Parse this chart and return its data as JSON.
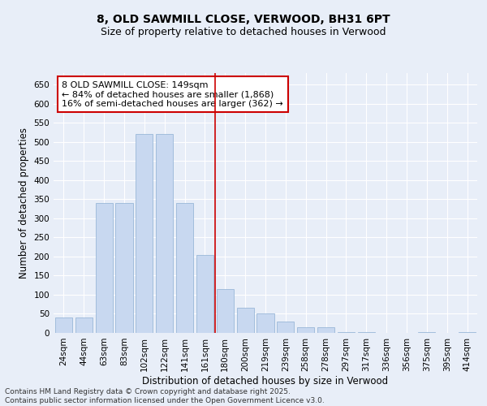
{
  "title": "8, OLD SAWMILL CLOSE, VERWOOD, BH31 6PT",
  "subtitle": "Size of property relative to detached houses in Verwood",
  "xlabel": "Distribution of detached houses by size in Verwood",
  "ylabel": "Number of detached properties",
  "categories": [
    "24sqm",
    "44sqm",
    "63sqm",
    "83sqm",
    "102sqm",
    "122sqm",
    "141sqm",
    "161sqm",
    "180sqm",
    "200sqm",
    "219sqm",
    "239sqm",
    "258sqm",
    "278sqm",
    "297sqm",
    "317sqm",
    "336sqm",
    "356sqm",
    "375sqm",
    "395sqm",
    "414sqm"
  ],
  "values": [
    40,
    40,
    340,
    340,
    520,
    520,
    340,
    205,
    115,
    65,
    50,
    30,
    15,
    15,
    2,
    2,
    0,
    0,
    2,
    0,
    2
  ],
  "bar_color": "#c8d8f0",
  "bar_edge_color": "#9ab8d8",
  "vline_color": "#cc0000",
  "vline_x": 7.5,
  "annotation_text": "8 OLD SAWMILL CLOSE: 149sqm\n← 84% of detached houses are smaller (1,868)\n16% of semi-detached houses are larger (362) →",
  "annotation_box_facecolor": "#ffffff",
  "annotation_box_edgecolor": "#cc0000",
  "ylim": [
    0,
    680
  ],
  "yticks": [
    0,
    50,
    100,
    150,
    200,
    250,
    300,
    350,
    400,
    450,
    500,
    550,
    600,
    650
  ],
  "background_color": "#e8eef8",
  "grid_color": "#ffffff",
  "footer_text": "Contains HM Land Registry data © Crown copyright and database right 2025.\nContains public sector information licensed under the Open Government Licence v3.0.",
  "title_fontsize": 10,
  "subtitle_fontsize": 9,
  "xlabel_fontsize": 8.5,
  "ylabel_fontsize": 8.5,
  "tick_fontsize": 7.5,
  "annotation_fontsize": 8,
  "footer_fontsize": 6.5
}
